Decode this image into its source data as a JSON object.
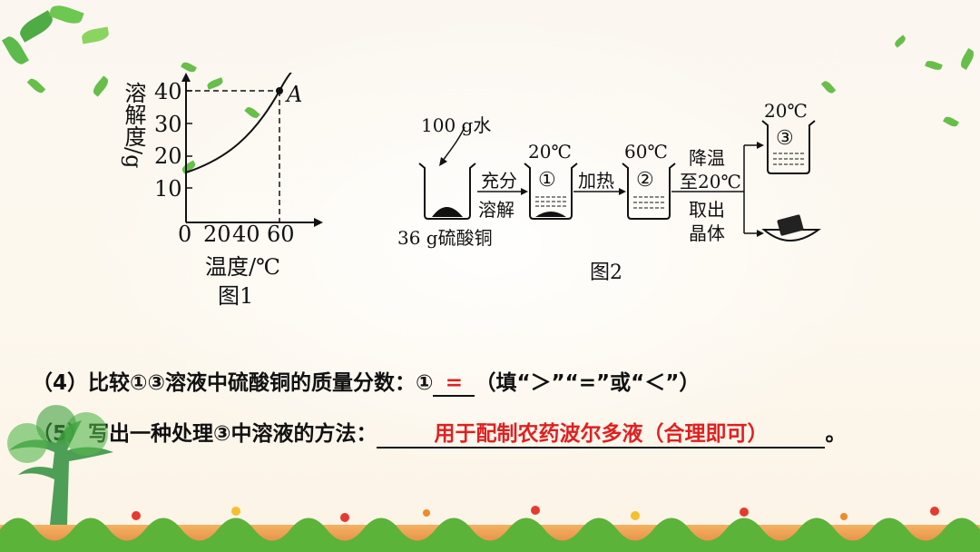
{
  "figure1": {
    "y_axis_label": "溶解度/g",
    "x_axis_label": "温度/℃",
    "y_ticks": [
      "10",
      "20",
      "30",
      "40"
    ],
    "x_ticks": [
      "0",
      "20",
      "40",
      "60"
    ],
    "point_label": "A",
    "caption": "图1"
  },
  "figure2": {
    "water": "100 g水",
    "solute": "36 g硫酸铜",
    "step1_top": "充分",
    "step1_bottom": "溶解",
    "beaker1_temp": "20℃",
    "beaker1_num": "①",
    "step2": "加热",
    "beaker2_temp": "60℃",
    "beaker2_num": "②",
    "step3_line1": "降温",
    "step3_line2": "至20℃",
    "step3_line3": "取出",
    "step3_line4": "晶体",
    "beaker3_temp": "20℃",
    "beaker3_num": "③",
    "caption": "图2"
  },
  "questions": {
    "q4_prefix": "（4）比较①③溶液中硫酸铜的质量分数：①",
    "q4_answer": "=",
    "q4_suffix": "（填“＞”“=”或“＜”）",
    "q5_prefix": "（5）写出一种处理③中溶液的方法：",
    "q5_answer": "用于配制农药波尔多液（合理即可）",
    "q5_suffix": "。"
  }
}
